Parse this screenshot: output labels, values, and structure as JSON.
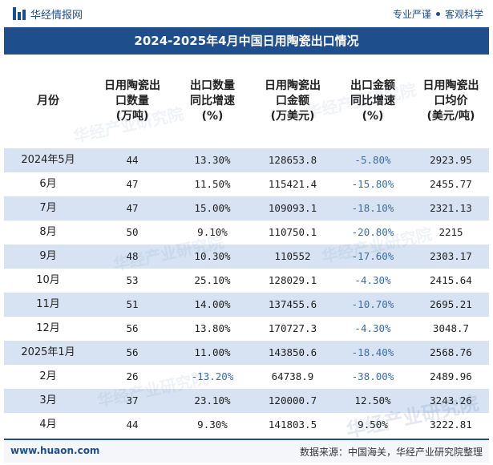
{
  "brand": {
    "name": "华经情报网",
    "slogan_left": "专业严谨",
    "slogan_right": "客观科学"
  },
  "title": "2024-2025年4月中国日用陶瓷出口情况",
  "columns": [
    "月份",
    "日用陶瓷出\n口数量\n(万吨)",
    "出口数量\n同比增速\n(%)",
    "日用陶瓷出\n口金额\n(万美元)",
    "出口金额\n同比增速\n(%)",
    "日用陶瓷出\n口均价\n(美元/吨)"
  ],
  "rows": [
    {
      "month": "2024年5月",
      "qty": "44",
      "qty_yoy": "13.30%",
      "amount": "128653.8",
      "amount_yoy": "-5.80%",
      "price": "2923.95"
    },
    {
      "month": "6月",
      "qty": "47",
      "qty_yoy": "11.50%",
      "amount": "115421.4",
      "amount_yoy": "-15.80%",
      "price": "2455.77"
    },
    {
      "month": "7月",
      "qty": "47",
      "qty_yoy": "15.00%",
      "amount": "109093.1",
      "amount_yoy": "-18.10%",
      "price": "2321.13"
    },
    {
      "month": "8月",
      "qty": "50",
      "qty_yoy": "9.10%",
      "amount": "110750.1",
      "amount_yoy": "-20.80%",
      "price": "2215"
    },
    {
      "month": "9月",
      "qty": "48",
      "qty_yoy": "10.30%",
      "amount": "110552",
      "amount_yoy": "-17.60%",
      "price": "2303.17"
    },
    {
      "month": "10月",
      "qty": "53",
      "qty_yoy": "25.10%",
      "amount": "128029.1",
      "amount_yoy": "-4.30%",
      "price": "2415.64"
    },
    {
      "month": "11月",
      "qty": "51",
      "qty_yoy": "14.00%",
      "amount": "137455.6",
      "amount_yoy": "-10.70%",
      "price": "2695.21"
    },
    {
      "month": "12月",
      "qty": "56",
      "qty_yoy": "13.80%",
      "amount": "170727.3",
      "amount_yoy": "-4.30%",
      "price": "3048.7"
    },
    {
      "month": "2025年1月",
      "qty": "56",
      "qty_yoy": "11.00%",
      "amount": "143850.6",
      "amount_yoy": "-18.40%",
      "price": "2568.76"
    },
    {
      "month": "2月",
      "qty": "26",
      "qty_yoy": "-13.20%",
      "amount": "64738.9",
      "amount_yoy": "-38.00%",
      "price": "2489.96"
    },
    {
      "month": "3月",
      "qty": "37",
      "qty_yoy": "23.10%",
      "amount": "120000.7",
      "amount_yoy": "12.50%",
      "price": "3243.26"
    },
    {
      "month": "4月",
      "qty": "44",
      "qty_yoy": "9.30%",
      "amount": "141803.5",
      "amount_yoy": "9.50%",
      "price": "3222.81"
    }
  ],
  "watermark": "华经产业研究院",
  "footer": {
    "site": "www.huaon.com",
    "source": "数据来源：中国海关，华经产业研究院整理"
  },
  "colors": {
    "header_bg": "#1f4e8c",
    "stripe": "#d7e3f2",
    "negative": "#3a6ea5"
  }
}
